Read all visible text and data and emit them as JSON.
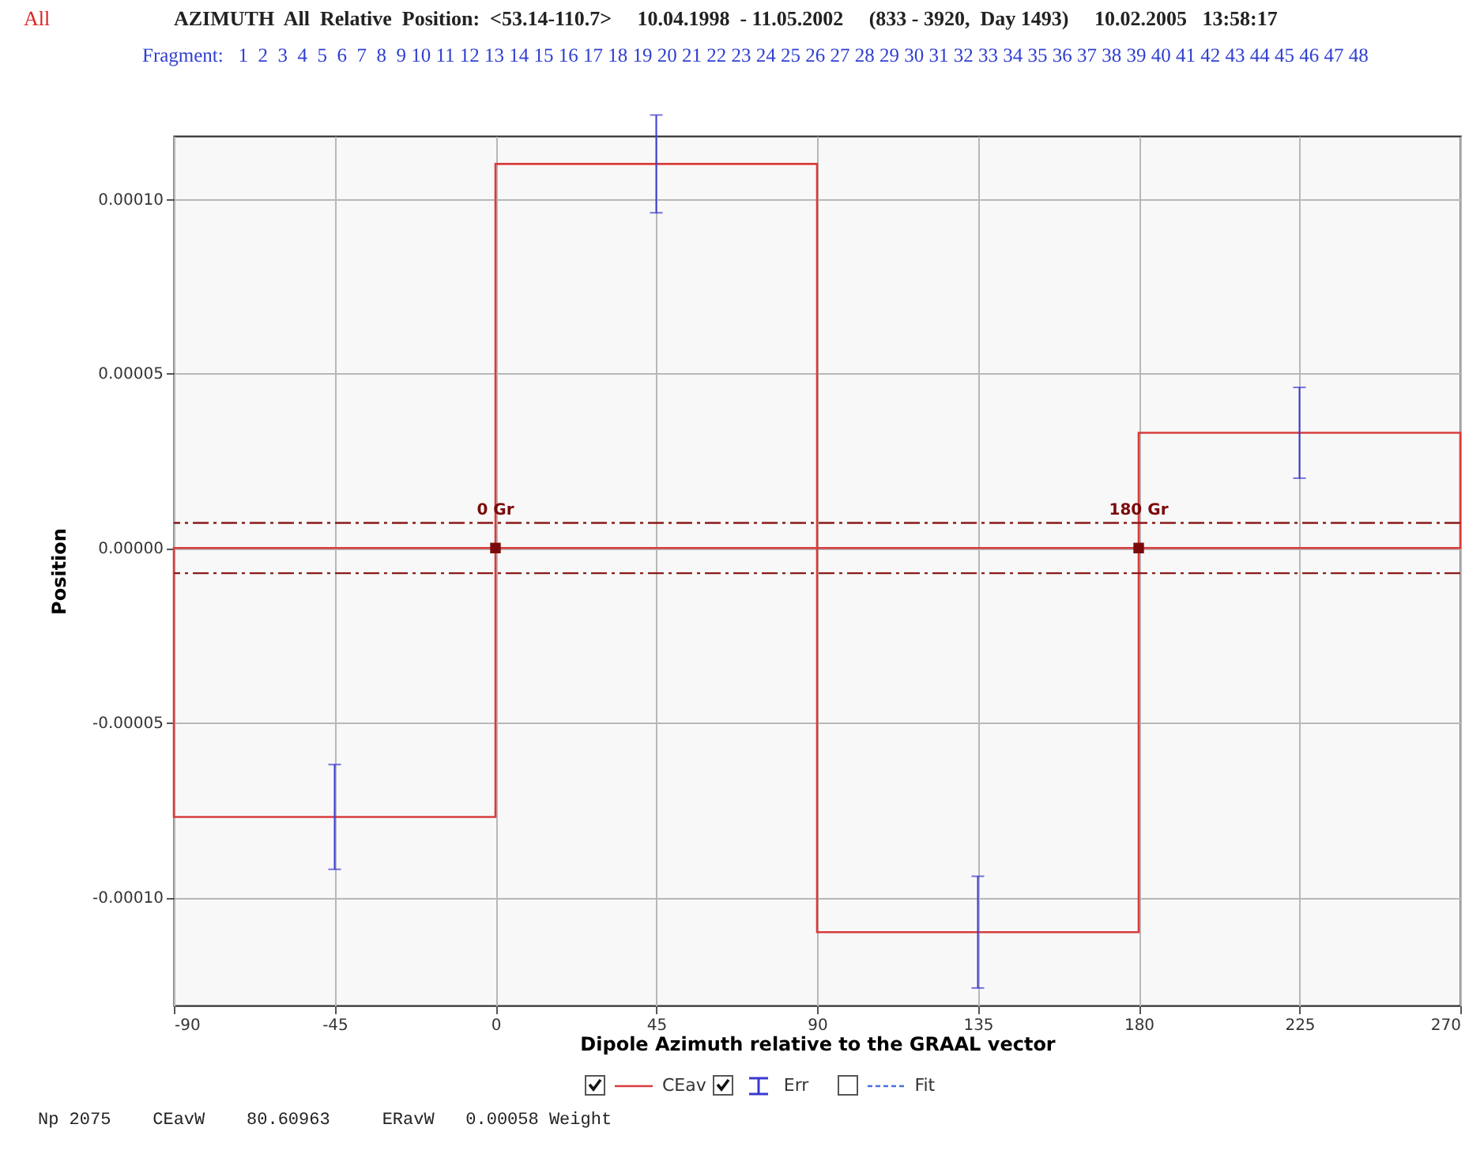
{
  "chart_data": {
    "type": "histogram",
    "title": "AZIMUTH  All  Relative  Position:  <53.14-110.7>     10.04.1998  - 11.05.2002     (833 - 3920,  Day 1493)     10.02.2005   13:58:17",
    "subtitle": "Fragment:   1  2  3  4  5  6  7  8  9 10 11 12 13 14 15 16 17 18 19 20 21 22 23 24 25 26 27 28 29 30 31 32 33 34 35 36 37 38 39 40 41 42 43 44 45 46 47 48",
    "xlabel": "Dipole Azimuth relative to the GRAAL vector",
    "ylabel": "Position",
    "bins": [
      -90,
      0,
      90,
      180,
      270
    ],
    "series": [
      {
        "name": "CEav",
        "color": "#d83c3c",
        "values": [
          -7.7e-05,
          0.00011,
          -0.00011,
          3.3e-05
        ],
        "errors": [
          1.5e-05,
          1.4e-05,
          1.6e-05,
          1.3e-05
        ]
      }
    ],
    "xlim": [
      -90,
      270
    ],
    "xticks": [
      -90,
      -45,
      0,
      45,
      90,
      135,
      180,
      225,
      270
    ],
    "ylim": [
      -0.000131,
      0.000118
    ],
    "yticks": [
      {
        "value": -0.0001,
        "label": "-0.00010"
      },
      {
        "value": -5e-05,
        "label": "-0.00005"
      },
      {
        "value": 0,
        "label": "0.00000"
      },
      {
        "value": 5e-05,
        "label": "0.00005"
      },
      {
        "value": 0.0001,
        "label": "0.00010"
      }
    ],
    "ref_lines": [
      {
        "axis": "y",
        "value": 7.2e-06,
        "color": "#8b1a1a",
        "line_style": "dashed"
      },
      {
        "axis": "y",
        "value": -7.2e-06,
        "color": "#8b1a1a",
        "line_style": "dashed"
      }
    ],
    "annotations": [
      "All",
      {
        "text": "0 Gr",
        "x": 0,
        "y": 0
      },
      {
        "text": "180 Gr",
        "x": 180,
        "y": 0
      },
      "Err",
      "Fit",
      "Np 2075    CEavW    80.60963     ERavW   0.00058 Weight"
    ],
    "grid": true,
    "legend": "bottom"
  }
}
